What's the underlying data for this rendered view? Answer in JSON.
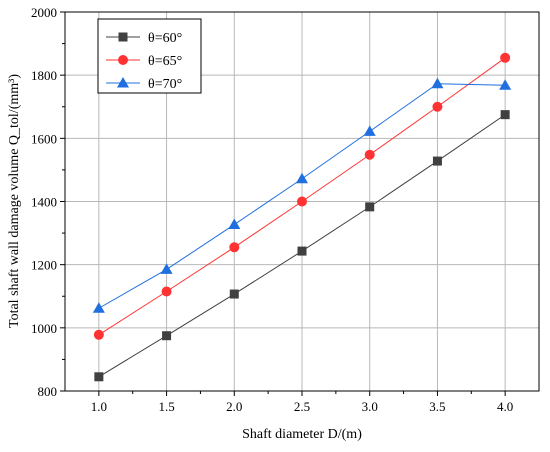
{
  "chart_data": {
    "type": "line",
    "title": "",
    "xlabel": "Shaft diameter D/(m)",
    "ylabel": "Total shaft wall damage volume Q_tol/(mm³)",
    "x": [
      1.0,
      1.5,
      2.0,
      2.5,
      3.0,
      3.5,
      4.0
    ],
    "x_tick_labels": [
      "1.0",
      "1.5",
      "2.0",
      "2.5",
      "3.0",
      "3.5",
      "4.0"
    ],
    "y_ticks": [
      800,
      1000,
      1200,
      1400,
      1600,
      1800,
      2000
    ],
    "xlim": [
      0.75,
      4.25
    ],
    "ylim": [
      800,
      2000
    ],
    "grid": true,
    "legend_position": "top-left",
    "series": [
      {
        "name": "θ=60°",
        "color": "#404040",
        "marker": "square",
        "values": [
          845,
          975,
          1107,
          1243,
          1383,
          1528,
          1675
        ]
      },
      {
        "name": "θ=65°",
        "color": "#ff3333",
        "marker": "circle",
        "values": [
          978,
          1115,
          1255,
          1400,
          1548,
          1700,
          1855
        ]
      },
      {
        "name": "θ=70°",
        "color": "#1f6fe0",
        "marker": "triangle",
        "values": [
          1062,
          1185,
          1327,
          1472,
          1622,
          1773,
          1768
        ]
      }
    ]
  }
}
